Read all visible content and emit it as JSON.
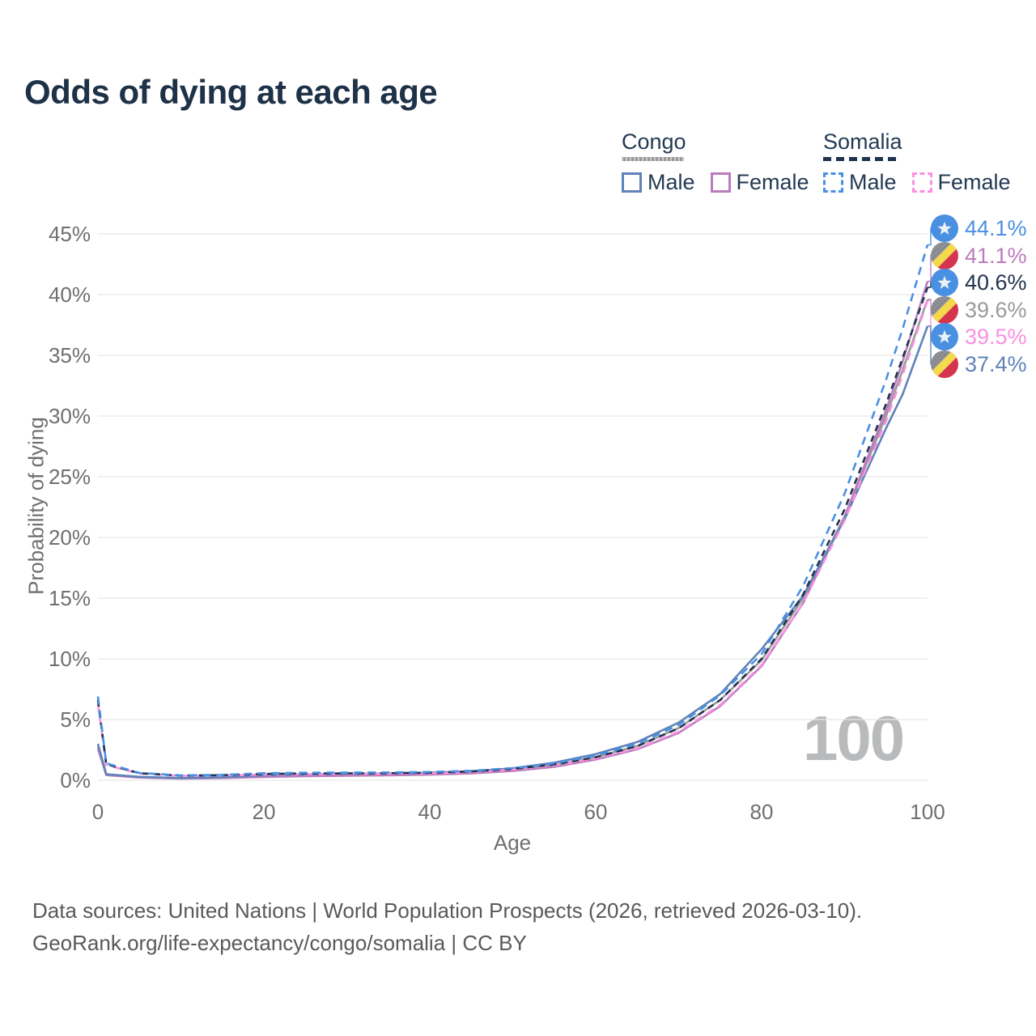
{
  "title": "Odds of dying at each age",
  "legend": {
    "groups": [
      {
        "name": "Congo",
        "line_style": "solid",
        "underline_color": "#9a9a9a",
        "items": [
          {
            "label": "Male",
            "color": "#5f83b9",
            "dashed": false
          },
          {
            "label": "Female",
            "color": "#bb7cbd",
            "dashed": false
          }
        ]
      },
      {
        "name": "Somalia",
        "line_style": "dashed",
        "underline_color": "#21344f",
        "items": [
          {
            "label": "Male",
            "color": "#4a90e2",
            "dashed": true
          },
          {
            "label": "Female",
            "color": "#fb90e2",
            "dashed": true
          }
        ]
      }
    ]
  },
  "chart_data": {
    "type": "line",
    "title": "Odds of dying at each age",
    "xlabel": "Age",
    "ylabel": "Probability of dying",
    "xlim": [
      0,
      100
    ],
    "ylim": [
      0,
      45
    ],
    "x_ticks": [
      0,
      20,
      40,
      60,
      80,
      100
    ],
    "y_ticks": [
      0,
      5,
      10,
      15,
      20,
      25,
      30,
      35,
      40,
      45
    ],
    "y_tick_suffix": "%",
    "grid": "horizontal",
    "legend_position": "top-right",
    "ages": [
      0,
      1,
      5,
      10,
      15,
      20,
      25,
      30,
      35,
      40,
      45,
      50,
      55,
      60,
      65,
      70,
      75,
      80,
      85,
      90,
      95,
      97,
      100
    ],
    "series": [
      {
        "name": "Somalia Male",
        "country": "Somalia",
        "sex": "Male",
        "color": "#4a90e2",
        "dash": "10 7",
        "end_label": "44.1%",
        "end_value": 44.1,
        "values": [
          6.9,
          1.4,
          0.6,
          0.4,
          0.45,
          0.58,
          0.62,
          0.63,
          0.64,
          0.68,
          0.78,
          1.0,
          1.4,
          2.05,
          3.0,
          4.55,
          7.0,
          10.4,
          16.0,
          23.6,
          33.0,
          37.2,
          44.1
        ]
      },
      {
        "name": "Congo Female",
        "country": "Congo",
        "sex": "Female",
        "color": "#bb7cbd",
        "dash": null,
        "end_label": "41.1%",
        "end_value": 41.1,
        "values": [
          2.6,
          0.42,
          0.22,
          0.14,
          0.18,
          0.27,
          0.33,
          0.37,
          0.41,
          0.46,
          0.56,
          0.76,
          1.1,
          1.7,
          2.55,
          3.9,
          6.1,
          9.4,
          14.6,
          21.7,
          30.5,
          34.5,
          41.1
        ]
      },
      {
        "name": "Somalia Total",
        "country": "Somalia",
        "sex": "Both",
        "color": "#21344f",
        "dash": "8 6",
        "end_label": "40.6%",
        "end_value": 40.6,
        "values": [
          6.6,
          1.32,
          0.58,
          0.38,
          0.42,
          0.52,
          0.56,
          0.57,
          0.58,
          0.62,
          0.72,
          0.93,
          1.3,
          1.9,
          2.8,
          4.28,
          6.6,
          10.0,
          15.3,
          22.3,
          31.0,
          34.8,
          40.6
        ]
      },
      {
        "name": "Congo Total",
        "country": "Congo",
        "sex": "Both",
        "color": "#9a9a9a",
        "dash": null,
        "end_label": "39.6%",
        "end_value": 39.6,
        "values": [
          2.8,
          0.46,
          0.25,
          0.16,
          0.21,
          0.33,
          0.4,
          0.44,
          0.48,
          0.53,
          0.64,
          0.86,
          1.25,
          1.9,
          2.82,
          4.3,
          6.6,
          9.9,
          15.0,
          21.7,
          30.0,
          33.8,
          39.6
        ]
      },
      {
        "name": "Somalia Female",
        "country": "Somalia",
        "sex": "Female",
        "color": "#fb90e2",
        "dash": "10 7",
        "end_label": "39.5%",
        "end_value": 39.5,
        "values": [
          6.3,
          1.25,
          0.55,
          0.36,
          0.4,
          0.46,
          0.5,
          0.52,
          0.53,
          0.57,
          0.67,
          0.87,
          1.22,
          1.78,
          2.62,
          4.0,
          6.2,
          9.5,
          14.6,
          21.4,
          29.6,
          33.4,
          39.5
        ]
      },
      {
        "name": "Congo Male",
        "country": "Congo",
        "sex": "Male",
        "color": "#5f83b9",
        "dash": null,
        "end_label": "37.4%",
        "end_value": 37.4,
        "values": [
          3.0,
          0.5,
          0.28,
          0.18,
          0.25,
          0.4,
          0.48,
          0.52,
          0.56,
          0.62,
          0.74,
          0.98,
          1.45,
          2.15,
          3.15,
          4.75,
          7.1,
          10.8,
          15.2,
          21.5,
          29.0,
          31.8,
          37.4
        ]
      }
    ]
  },
  "end_labels": [
    {
      "value": "44.1%",
      "flag": "somalia",
      "color": "#4a90e2"
    },
    {
      "value": "41.1%",
      "flag": "congo",
      "color": "#bb7cbd"
    },
    {
      "value": "40.6%",
      "flag": "somalia",
      "color": "#21344f"
    },
    {
      "value": "39.6%",
      "flag": "congo",
      "color": "#9a9a9a"
    },
    {
      "value": "39.5%",
      "flag": "somalia",
      "color": "#fb90e2"
    },
    {
      "value": "37.4%",
      "flag": "congo",
      "color": "#5f83b9"
    }
  ],
  "watermark": "100",
  "footer": {
    "line1": "Data sources: United Nations | World Population Prospects (2026, retrieved 2026-03-10).",
    "line2": "GeoRank.org/life-expectancy/congo/somalia | CC BY"
  }
}
